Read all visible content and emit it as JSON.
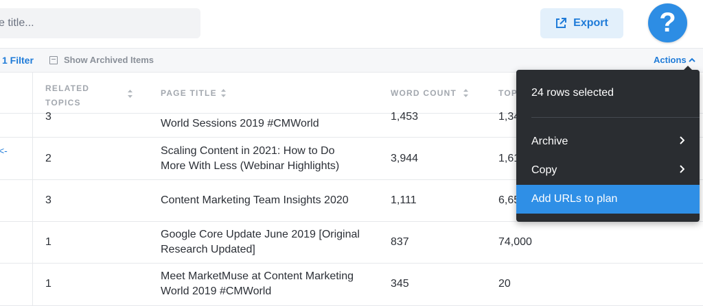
{
  "topbar": {
    "search_placeholder": "e title...",
    "export_label": "Export",
    "help_label": "?"
  },
  "filterbar": {
    "filter_label": "1 Filter",
    "archived_label": "Show Archived Items",
    "actions_label": "Actions"
  },
  "table": {
    "headers": {
      "related_topics_line1": "RELATED",
      "related_topics_line2": "TOPICS",
      "page_title": "PAGE TITLE",
      "word_count": "WORD COUNT",
      "top": "TOP"
    },
    "rows": [
      {
        "related": "3",
        "title1": "",
        "title2": "World Sessions 2019 #CMWorld",
        "words": "1,453",
        "top": "1,34"
      },
      {
        "related": "2",
        "title1": "Scaling Content in 2021: How to Do",
        "title2": "More With Less (Webinar Highlights)",
        "words": "3,944",
        "top": "1,61"
      },
      {
        "related": "3",
        "title1": "Content Marketing Team Insights 2020",
        "title2": "",
        "words": "1,111",
        "top": "6,65"
      },
      {
        "related": "1",
        "title1": "Google Core Update June 2019 [Original",
        "title2": "Research Updated]",
        "words": "837",
        "top": "74,000"
      },
      {
        "related": "1",
        "title1": "Meet MarketMuse at Content Marketing",
        "title2": "World 2019 #CMWorld",
        "words": "345",
        "top": "20"
      }
    ],
    "left_edge_mark": "<-"
  },
  "menu": {
    "header": "24 rows selected",
    "items": [
      {
        "label": "Archive",
        "has_submenu": true
      },
      {
        "label": "Copy",
        "has_submenu": true
      },
      {
        "label": "Add URLs to plan",
        "has_submenu": false,
        "active": true
      }
    ]
  },
  "colors": {
    "accent": "#1f7bd8",
    "help_button": "#2d8de4",
    "menu_bg": "#2a2d31",
    "menu_active": "#2f8fe6",
    "export_bg": "#e3f0fb"
  },
  "icons": {
    "export": "external-link-icon",
    "archived": "archive-box-icon",
    "actions": "chevron-up-icon",
    "sort": "sort-icon",
    "submenu": "chevron-right-icon"
  }
}
